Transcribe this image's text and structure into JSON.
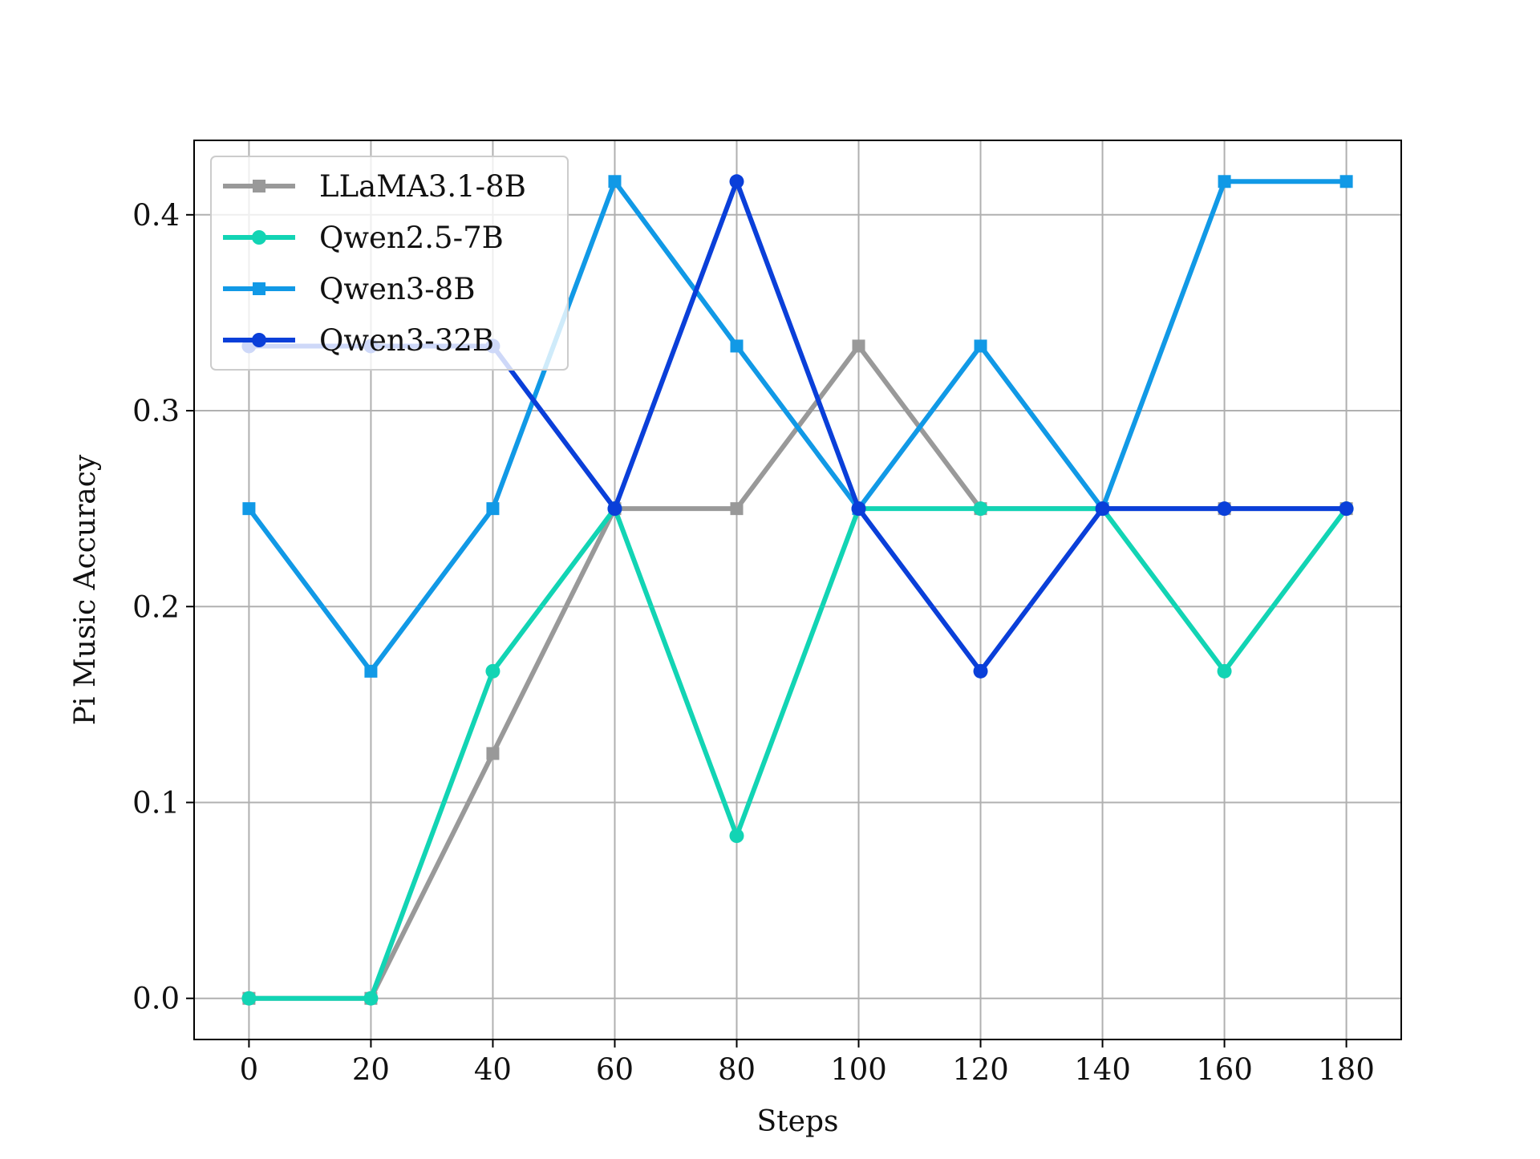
{
  "chart_data": {
    "type": "line",
    "title": "",
    "xlabel": "Steps",
    "ylabel": "Pi Music Accuracy",
    "x": [
      0,
      20,
      40,
      60,
      80,
      100,
      120,
      140,
      160,
      180
    ],
    "x_ticks": [
      "0",
      "20",
      "40",
      "60",
      "80",
      "100",
      "120",
      "140",
      "160",
      "180"
    ],
    "y_ticks": [
      "0.0",
      "0.1",
      "0.2",
      "0.3",
      "0.4"
    ],
    "xlim": [
      -9,
      189
    ],
    "ylim": [
      -0.021,
      0.438
    ],
    "grid": true,
    "legend_position": "top-left",
    "series": [
      {
        "name": "LLaMA3.1-8B",
        "color": "#999999",
        "marker": "square",
        "values": [
          0.0,
          0.0,
          0.125,
          0.25,
          0.25,
          0.333,
          0.25,
          0.25,
          0.25,
          0.25
        ]
      },
      {
        "name": "Qwen2.5-7B",
        "color": "#12d4b4",
        "marker": "circle",
        "values": [
          0.0,
          0.0,
          0.167,
          0.25,
          0.083,
          0.25,
          0.25,
          0.25,
          0.167,
          0.25
        ]
      },
      {
        "name": "Qwen3-8B",
        "color": "#1199e6",
        "marker": "square",
        "values": [
          0.25,
          0.167,
          0.25,
          0.417,
          0.333,
          0.25,
          0.333,
          0.25,
          0.417,
          0.417
        ]
      },
      {
        "name": "Qwen3-32B",
        "color": "#0a3fd9",
        "marker": "circle",
        "values": [
          0.333,
          0.333,
          0.333,
          0.25,
          0.417,
          0.25,
          0.167,
          0.25,
          0.25,
          0.25
        ]
      }
    ]
  }
}
